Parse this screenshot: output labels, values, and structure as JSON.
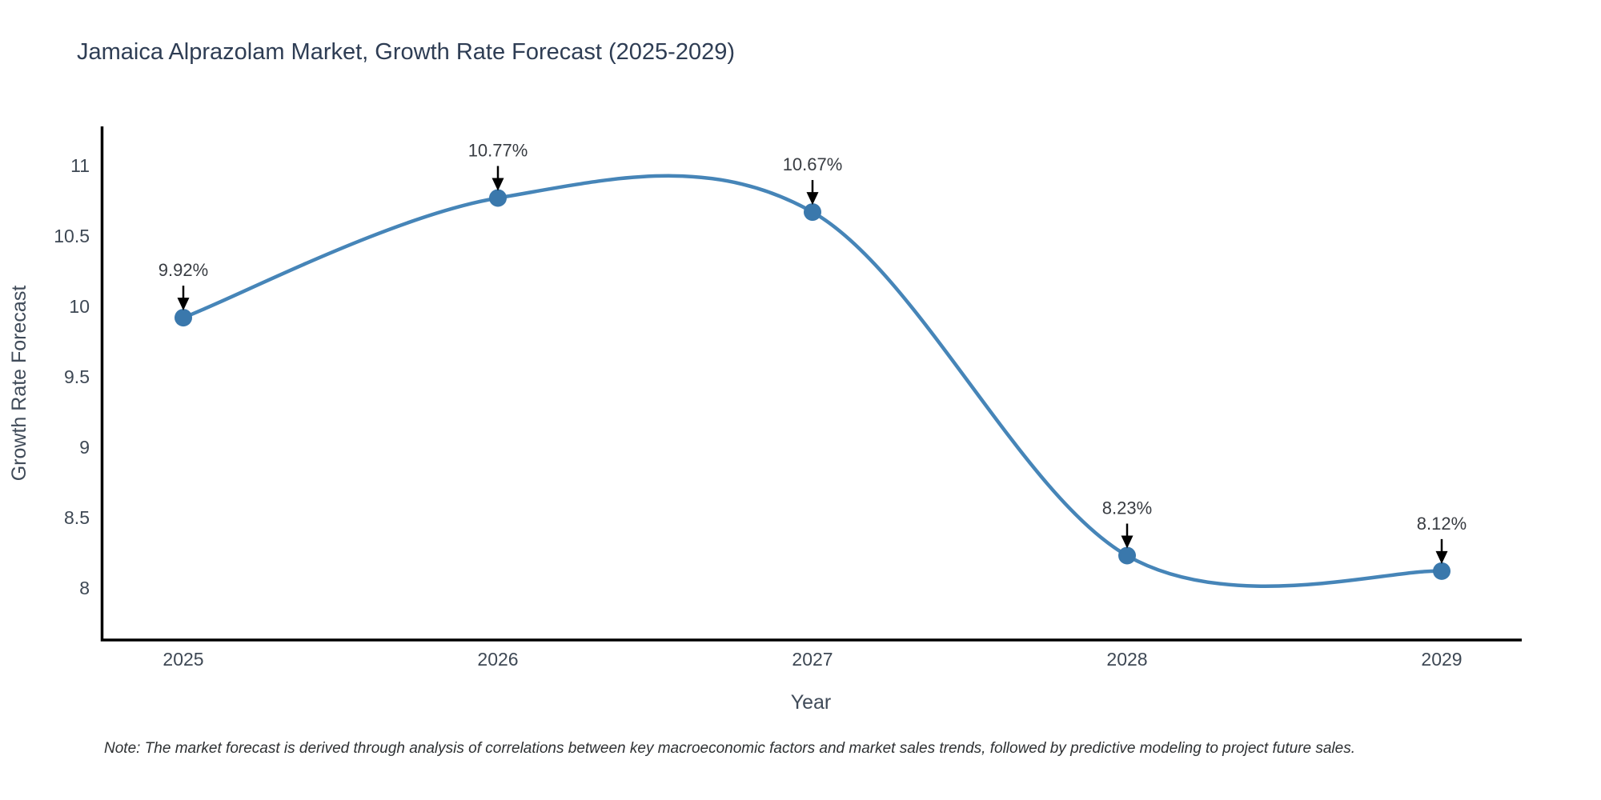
{
  "title": "Jamaica Alprazolam Market, Growth Rate Forecast (2025-2029)",
  "note": "Note: The market forecast is derived through analysis of correlations between key macroeconomic factors and market sales trends, followed by predictive modeling to project future sales.",
  "chart_data": {
    "type": "line",
    "title": "Jamaica Alprazolam Market, Growth Rate Forecast (2025-2029)",
    "xlabel": "Year",
    "ylabel": "Growth Rate Forecast",
    "x": [
      2025,
      2026,
      2027,
      2028,
      2029
    ],
    "xticklabels": [
      "2025",
      "2026",
      "2027",
      "2028",
      "2029"
    ],
    "series": [
      {
        "name": "Growth Rate Forecast",
        "values": [
          9.92,
          10.77,
          10.67,
          8.23,
          8.12
        ]
      }
    ],
    "point_labels": [
      "9.92%",
      "10.77%",
      "10.67%",
      "8.23%",
      "8.12%"
    ],
    "yticks": [
      8,
      8.5,
      9,
      9.5,
      10,
      10.5,
      11
    ],
    "ylim": [
      7.63,
      11.27
    ],
    "grid": false,
    "legend": false,
    "line_shape": "spline",
    "marker_style": "filled-circle",
    "annotation_style": "text-with-down-arrow",
    "colors": {
      "line": "#4685b8",
      "marker": "#3a78ac",
      "arrow": "#000000",
      "axis": "#000000",
      "title_text": "#2e3d54",
      "tick_text": "#3e4854",
      "annotation_text": "#383c42",
      "note_text": "#2e3133",
      "background": "#ffffff"
    }
  }
}
